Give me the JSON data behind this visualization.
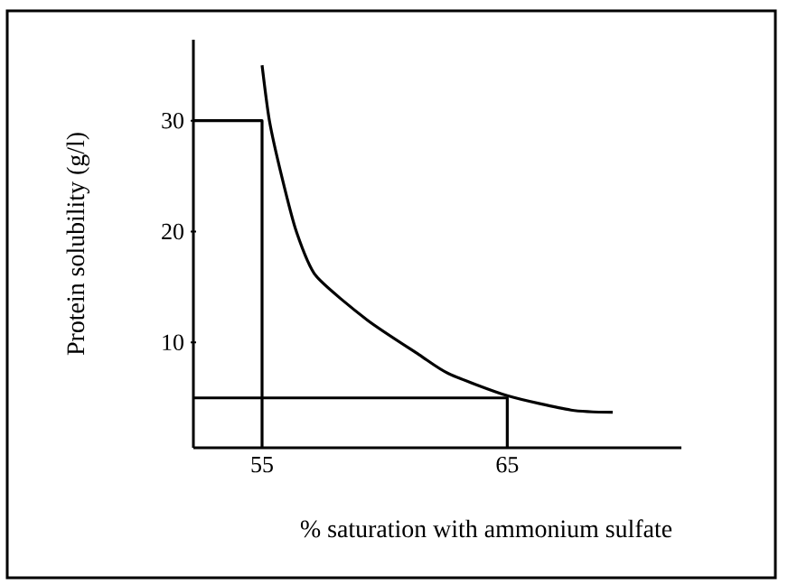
{
  "chart_data": {
    "type": "line",
    "xlabel": "% saturation with ammonium sulfate",
    "ylabel": "Protein solubility (g/l)",
    "series": [
      {
        "color": "#000000",
        "x": [
          55,
          55.3,
          55.8,
          56.4,
          57.2,
          59.3,
          61.4,
          62.6,
          65,
          67.6,
          69.3
        ],
        "values": [
          35,
          30,
          25,
          20,
          16,
          12,
          8.9,
          7.2,
          5.2,
          3.9,
          3.7
        ]
      },
      {
        "type": "line",
        "color": "#000000",
        "x": [
          52.2,
          55,
          55
        ],
        "values": [
          30,
          30,
          0.5
        ]
      },
      {
        "type": "line",
        "color": "#000000",
        "x": [
          52.2,
          65,
          65
        ],
        "values": [
          5,
          5,
          0.5
        ]
      }
    ],
    "xlim": [
      52.2,
      72.1
    ],
    "ylim": [
      0.5,
      37.3
    ],
    "xticks": [
      55,
      65
    ],
    "yticks": [
      10,
      20,
      30
    ],
    "grid": false,
    "marker": "none",
    "line_style": "solid"
  }
}
